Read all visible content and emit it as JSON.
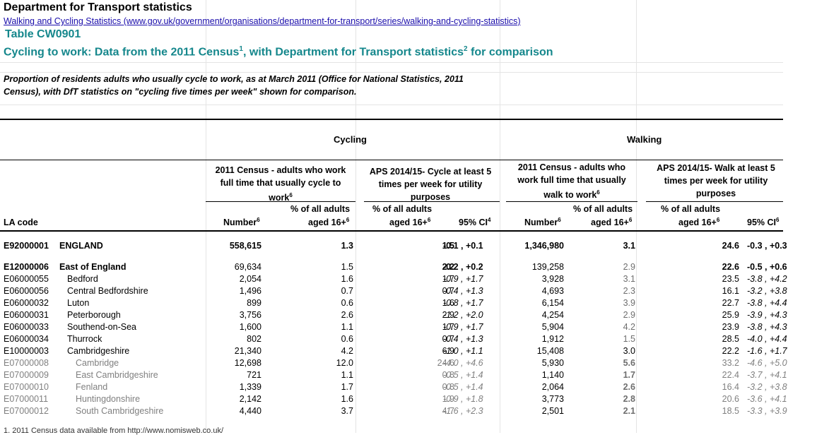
{
  "header": {
    "title": "Department for Transport statistics",
    "link": "Walking and Cycling Statistics (www.gov.uk/government/organisations/department-for-transport/series/walking-and-cycling-statistics)",
    "table_id": "Table CW0901",
    "subtitle_a": "Cycling to work: Data from the 2011 Census",
    "sup1": "1",
    "subtitle_b": ", with Department for Transport statistics",
    "sup2": "2",
    "subtitle_c": " for comparison",
    "description": "Proportion of residents adults who usually cycle to work, as at March 2011 (Office for National Statistics, 2011 Census), with DfT statistics on \"cycling five times per week\" shown for comparison."
  },
  "sections": {
    "cycling": "Cycling",
    "walking": "Walking"
  },
  "columns": {
    "cyc_census": "2011 Census - adults who work full time that usually cycle to work",
    "cyc_aps": "APS 2014/15- Cycle at least 5 times per week for utility purposes",
    "walk_census": "2011 Census - adults who work full time that usually walk to work",
    "walk_aps": "APS 2014/15- Walk at least 5 times per week for utility purposes",
    "la_code": "LA code",
    "number": "Number",
    "pct_line1": "% of all adults",
    "pct_line2": "aged 16+",
    "ci": "95% CI",
    "sup6": "6",
    "sup4": "4"
  },
  "rows": [
    {
      "code": "E92000001",
      "name": "ENGLAND",
      "c1": "558,615",
      "c2": "1.3",
      "c3": "1.5",
      "c4": "-0.1 , +0.1",
      "c5": "1,346,980",
      "c6": "3.1",
      "c7": "24.6",
      "c8": "-0.3 , +0.3"
    },
    {
      "code": "E12000006",
      "name": "East of England",
      "c1": "69,634",
      "c2": "1.5",
      "c3": "2.2",
      "c4": "-0.2 , +0.2",
      "c5": "139,258",
      "c6": "2.9",
      "c7": "22.6",
      "c8": "-0.5 , +0.6"
    },
    {
      "code": "E06000055",
      "name": "Bedford",
      "c1": "2,054",
      "c2": "1.6",
      "c3": "1.7",
      "c4": "-0.9 , +1.7",
      "c5": "3,928",
      "c6": "3.1",
      "c7": "23.5",
      "c8": "-3.8 , +4.2"
    },
    {
      "code": "E06000056",
      "name": "Central Bedfordshire",
      "c1": "1,496",
      "c2": "0.7",
      "c3": "0.7",
      "c4": "-0.4 , +1.3",
      "c5": "4,693",
      "c6": "2.3",
      "c7": "16.1",
      "c8": "-3.2 , +3.8"
    },
    {
      "code": "E06000032",
      "name": "Luton",
      "c1": "899",
      "c2": "0.6",
      "c3": "1.6",
      "c4": "-0.8 , +1.7",
      "c5": "6,154",
      "c6": "3.9",
      "c7": "22.7",
      "c8": "-3.8 , +4.4"
    },
    {
      "code": "E06000031",
      "name": "Peterborough",
      "c1": "3,756",
      "c2": "2.6",
      "c3": "2.9",
      "c4": "-1.2 , +2.0",
      "c5": "4,254",
      "c6": "2.9",
      "c7": "25.9",
      "c8": "-3.9 , +4.3"
    },
    {
      "code": "E06000033",
      "name": "Southend-on-Sea",
      "c1": "1,600",
      "c2": "1.1",
      "c3": "1.7",
      "c4": "-0.9 , +1.7",
      "c5": "5,904",
      "c6": "4.2",
      "c7": "23.9",
      "c8": "-3.8 , +4.3"
    },
    {
      "code": "E06000034",
      "name": "Thurrock",
      "c1": "802",
      "c2": "0.6",
      "c3": "0.7",
      "c4": "-0.4 , +1.3",
      "c5": "1,912",
      "c6": "1.5",
      "c7": "28.5",
      "c8": "-4.0 , +4.4"
    },
    {
      "code": "E10000003",
      "name": "Cambridgeshire",
      "c1": "21,340",
      "c2": "4.2",
      "c3": "6.9",
      "c4": "-1.0 , +1.1",
      "c5": "15,408",
      "c6": "3.0",
      "c7": "22.2",
      "c8": "-1.6 , +1.7"
    },
    {
      "code": "E07000008",
      "name": "Cambridge",
      "c1": "12,698",
      "c2": "12.0",
      "c3": "24.6",
      "c4": "-4.0 , +4.6",
      "c5": "5,930",
      "c6": "5.6",
      "c7": "33.2",
      "c8": "-4.6 , +5.0"
    },
    {
      "code": "E07000009",
      "name": "East Cambridgeshire",
      "c1": "721",
      "c2": "1.1",
      "c3": "0.8",
      "c4": "-0.5 , +1.4",
      "c5": "1,140",
      "c6": "1.7",
      "c7": "22.4",
      "c8": "-3.7 , +4.1"
    },
    {
      "code": "E07000010",
      "name": "Fenland",
      "c1": "1,339",
      "c2": "1.7",
      "c3": "0.8",
      "c4": "-0.5 , +1.4",
      "c5": "2,064",
      "c6": "2.6",
      "c7": "16.4",
      "c8": "-3.2 , +3.8"
    },
    {
      "code": "E07000011",
      "name": "Huntingdonshire",
      "c1": "2,142",
      "c2": "1.6",
      "c3": "1.9",
      "c4": "-0.9 , +1.8",
      "c5": "3,773",
      "c6": "2.8",
      "c7": "20.6",
      "c8": "-3.6 , +4.1"
    },
    {
      "code": "E07000012",
      "name": "South Cambridgeshire",
      "c1": "4,440",
      "c2": "3.7",
      "c3": "4.7",
      "c4": "-1.6 , +2.3",
      "c5": "2,501",
      "c6": "2.1",
      "c7": "18.5",
      "c8": "-3.3 , +3.9"
    }
  ],
  "footnote": "1. 2011 Census data available from http://www.nomisweb.co.uk/"
}
